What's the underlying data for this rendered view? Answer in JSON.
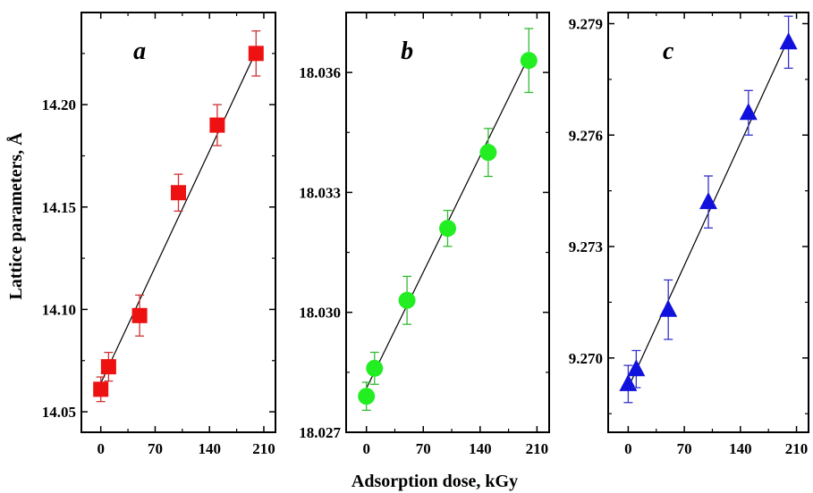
{
  "figure": {
    "xlabel": "Adsorption dose, kGy",
    "ylabel": "Lattice parameters, Å"
  },
  "chart_data": [
    {
      "type": "scatter",
      "panel_label": "a",
      "marker": "square",
      "color": "#ee1111",
      "errorbar_color": "#cc3333",
      "x": [
        0,
        10,
        50,
        100,
        150,
        200
      ],
      "values": [
        14.061,
        14.072,
        14.097,
        14.157,
        14.19,
        14.225
      ],
      "errors": [
        0.006,
        0.007,
        0.01,
        0.009,
        0.01,
        0.011
      ],
      "fit_line": {
        "x": [
          0,
          200
        ],
        "y": [
          14.064,
          14.226
        ]
      },
      "xlim": [
        -25,
        225
      ],
      "ylim": [
        14.04,
        14.245
      ],
      "xticks": [
        0,
        70,
        140,
        210
      ],
      "yticks": [
        14.05,
        14.1,
        14.15,
        14.2
      ],
      "ytick_labels": [
        "14.05",
        "14.10",
        "14.15",
        "14.20"
      ]
    },
    {
      "type": "scatter",
      "panel_label": "b",
      "marker": "circle",
      "color": "#22ee22",
      "errorbar_color": "#33bb33",
      "x": [
        0,
        10,
        50,
        100,
        150,
        200
      ],
      "values": [
        18.0279,
        18.0286,
        18.0303,
        18.0321,
        18.034,
        18.0363
      ],
      "errors": [
        0.00035,
        0.0004,
        0.0006,
        0.00045,
        0.0006,
        0.0008
      ],
      "fit_line": {
        "x": [
          0,
          200
        ],
        "y": [
          18.0281,
          18.0364
        ]
      },
      "xlim": [
        -25,
        225
      ],
      "ylim": [
        18.027,
        18.0375
      ],
      "xticks": [
        0,
        70,
        140,
        210
      ],
      "yticks": [
        18.027,
        18.03,
        18.033,
        18.036
      ],
      "ytick_labels": [
        "18.027",
        "18.030",
        "18.033",
        "18.036"
      ]
    },
    {
      "type": "scatter",
      "panel_label": "c",
      "marker": "triangle",
      "color": "#1111dd",
      "errorbar_color": "#3333cc",
      "x": [
        0,
        10,
        50,
        100,
        150,
        200
      ],
      "values": [
        9.2693,
        9.2697,
        9.2713,
        9.2742,
        9.2766,
        9.2785
      ],
      "errors": [
        0.0005,
        0.0005,
        0.0008,
        0.0007,
        0.0006,
        0.0007
      ],
      "fit_line": {
        "x": [
          0,
          200
        ],
        "y": [
          9.2692,
          9.2786
        ]
      },
      "xlim": [
        -25,
        225
      ],
      "ylim": [
        9.268,
        9.2793
      ],
      "xticks": [
        0,
        70,
        140,
        210
      ],
      "yticks": [
        9.27,
        9.273,
        9.276,
        9.279
      ],
      "ytick_labels": [
        "9.270",
        "9.273",
        "9.276",
        "9.279"
      ]
    }
  ]
}
